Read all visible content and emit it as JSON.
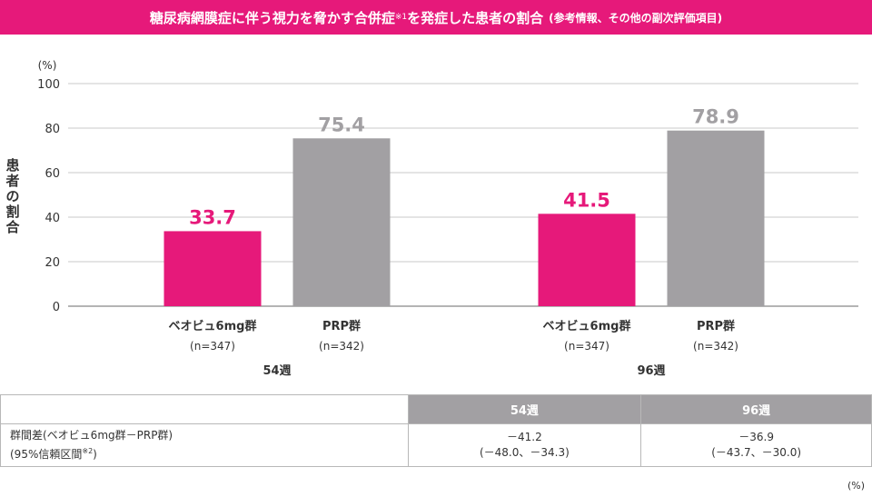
{
  "title": {
    "main": "糖尿病網膜症に伴う視力を脅かす合併症",
    "note_mark": "※1",
    "main2": "を発症した患者の割合",
    "subtitle": "(参考情報、その他の副次評価項目)"
  },
  "chart_data": {
    "type": "bar",
    "unit_label": "(%)",
    "ylabel": "患者の割合",
    "ylim": [
      0,
      100
    ],
    "yticks": [
      "0",
      "20",
      "40",
      "60",
      "80",
      "100"
    ],
    "groups": [
      {
        "name": "54週",
        "bars": [
          {
            "name": "ベオビュ6mg群",
            "n": "(n=347)",
            "value": 33.7,
            "label": "33.7",
            "color": "#e6197a",
            "label_color": "#e6197a"
          },
          {
            "name": "PRP群",
            "n": "(n=342)",
            "value": 75.4,
            "label": "75.4",
            "color": "#a2a0a3",
            "label_color": "#a2a0a3"
          }
        ]
      },
      {
        "name": "96週",
        "bars": [
          {
            "name": "ベオビュ6mg群",
            "n": "(n=347)",
            "value": 41.5,
            "label": "41.5",
            "color": "#e6197a",
            "label_color": "#e6197a"
          },
          {
            "name": "PRP群",
            "n": "(n=342)",
            "value": 78.9,
            "label": "78.9",
            "color": "#a2a0a3",
            "label_color": "#a2a0a3"
          }
        ]
      }
    ]
  },
  "table": {
    "headers": [
      "",
      "54週",
      "96週"
    ],
    "row": {
      "label_line1": "群間差(ベオビュ6mg群－PRP群)",
      "label_line2": "(95%信頼区間",
      "label_note": "※2",
      "label_close": ")",
      "values": [
        {
          "diff": "－41.2",
          "ci": "(－48.0、－34.3)"
        },
        {
          "diff": "－36.9",
          "ci": "(－43.7、－30.0)"
        }
      ]
    },
    "unit_note": "(%)"
  }
}
